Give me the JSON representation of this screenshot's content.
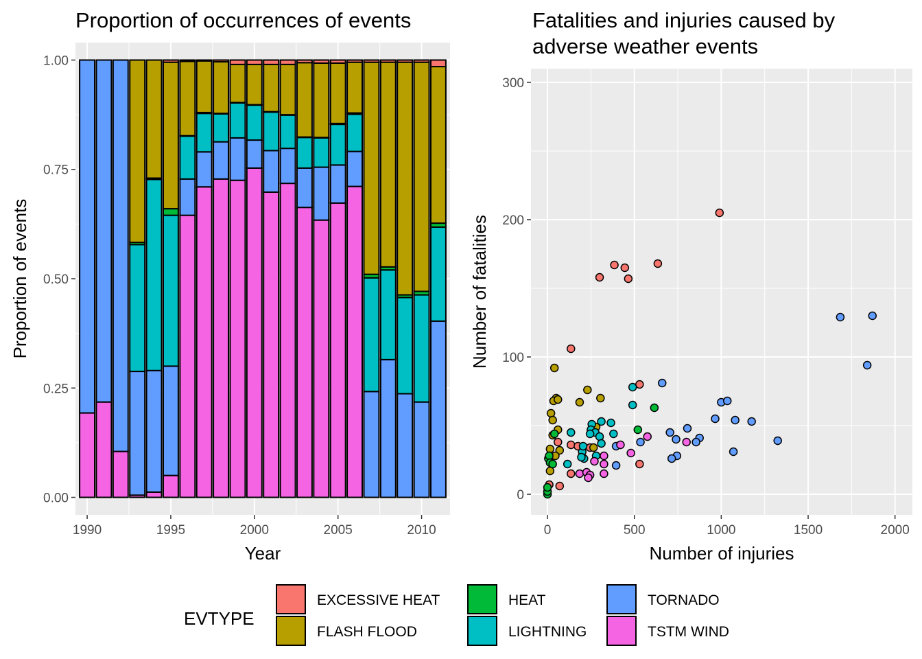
{
  "colors": {
    "EXCESSIVE HEAT": "#f8766d",
    "FLASH FLOOD": "#b79f00",
    "HEAT": "#00ba38",
    "LIGHTNING": "#00bfc4",
    "TORNADO": "#619cff",
    "TSTM WIND": "#f564e3",
    "panel": "#ebebeb",
    "grid": "#ffffff"
  },
  "legend": {
    "title": "EVTYPE",
    "entries": [
      "EXCESSIVE HEAT",
      "FLASH FLOOD",
      "HEAT",
      "LIGHTNING",
      "TORNADO",
      "TSTM WIND"
    ]
  },
  "chart_data": [
    {
      "type": "bar",
      "stacked": true,
      "title": "Proportion of occurrences of events",
      "xlabel": "Year",
      "ylabel": "Proportion of events",
      "xlim": [
        1989.3,
        2011.7
      ],
      "ylim": [
        -0.04,
        1.04
      ],
      "xticks": [
        1990,
        1995,
        2000,
        2005,
        2010
      ],
      "yticks": [
        0,
        0.25,
        0.5,
        0.75,
        1
      ],
      "ytick_labels": [
        "0.00",
        "0.25",
        "0.50",
        "0.75",
        "1.00"
      ],
      "stack_order_bottom_to_top": [
        "TSTM WIND",
        "TORNADO",
        "LIGHTNING",
        "HEAT",
        "FLASH FLOOD",
        "EXCESSIVE HEAT"
      ],
      "categories": [
        1990,
        1991,
        1992,
        1993,
        1994,
        1995,
        1996,
        1997,
        1998,
        1999,
        2000,
        2001,
        2002,
        2003,
        2004,
        2005,
        2006,
        2007,
        2008,
        2009,
        2010,
        2011
      ],
      "series": [
        {
          "name": "TSTM WIND",
          "values": [
            0.193,
            0.218,
            0.105,
            0.005,
            0.012,
            0.05,
            0.645,
            0.71,
            0.728,
            0.725,
            0.753,
            0.698,
            0.718,
            0.663,
            0.634,
            0.673,
            0.711,
            0,
            0,
            0,
            0,
            0
          ]
        },
        {
          "name": "TORNADO",
          "values": [
            0.807,
            0.782,
            0.895,
            0.283,
            0.278,
            0.25,
            0.083,
            0.08,
            0.085,
            0.097,
            0.064,
            0.095,
            0.08,
            0.09,
            0.121,
            0.087,
            0.08,
            0.242,
            0.315,
            0.237,
            0.218,
            0.403
          ]
        },
        {
          "name": "LIGHTNING",
          "values": [
            0,
            0,
            0,
            0.29,
            0.437,
            0.345,
            0.098,
            0.088,
            0.064,
            0.08,
            0.08,
            0.088,
            0.076,
            0.07,
            0.067,
            0.093,
            0.085,
            0.26,
            0.205,
            0.22,
            0.245,
            0.215
          ]
        },
        {
          "name": "HEAT",
          "values": [
            0,
            0,
            0,
            0.005,
            0.003,
            0.015,
            0.001,
            0.002,
            0.001,
            0.001,
            0.001,
            0.001,
            0.001,
            0.001,
            0.001,
            0.002,
            0.003,
            0.008,
            0.007,
            0.006,
            0.008,
            0.009
          ]
        },
        {
          "name": "FLASH FLOOD",
          "values": [
            0,
            0,
            0,
            0.417,
            0.27,
            0.335,
            0.17,
            0.118,
            0.118,
            0.087,
            0.092,
            0.108,
            0.115,
            0.17,
            0.17,
            0.138,
            0.116,
            0.485,
            0.468,
            0.532,
            0.524,
            0.358
          ]
        },
        {
          "name": "EXCESSIVE HEAT",
          "values": [
            0,
            0,
            0,
            0,
            0,
            0.005,
            0.003,
            0.002,
            0.004,
            0.01,
            0.01,
            0.01,
            0.01,
            0.006,
            0.007,
            0.007,
            0.005,
            0.005,
            0.005,
            0.005,
            0.005,
            0.015
          ]
        }
      ]
    },
    {
      "type": "scatter",
      "title": "Fatalities and injuries caused by\n adverse weather events",
      "xlabel": "Number of injuries",
      "ylabel": "Number of fatalities",
      "xlim": [
        -95,
        2100
      ],
      "ylim": [
        -15,
        310
      ],
      "xticks": [
        0,
        500,
        1000,
        1500,
        2000
      ],
      "yticks": [
        0,
        100,
        200,
        300
      ],
      "series": [
        {
          "name": "EXCESSIVE HEAT",
          "points": [
            [
              990,
              205
            ],
            [
              300,
              158
            ],
            [
              385,
              167
            ],
            [
              445,
              165
            ],
            [
              465,
              157
            ],
            [
              635,
              168
            ],
            [
              135,
              106
            ],
            [
              530,
              80
            ],
            [
              60,
              38
            ],
            [
              135,
              36
            ],
            [
              175,
              35
            ],
            [
              245,
              34
            ],
            [
              530,
              22
            ],
            [
              135,
              15
            ],
            [
              10,
              7
            ],
            [
              70,
              6
            ]
          ]
        },
        {
          "name": "FLASH FLOOD",
          "points": [
            [
              40,
              92
            ],
            [
              230,
              76
            ],
            [
              305,
              70
            ],
            [
              185,
              67
            ],
            [
              50,
              70
            ],
            [
              35,
              68
            ],
            [
              60,
              69
            ],
            [
              20,
              59
            ],
            [
              30,
              54
            ],
            [
              60,
              47
            ],
            [
              280,
              49
            ],
            [
              30,
              43
            ],
            [
              15,
              33
            ],
            [
              70,
              32
            ],
            [
              15,
              27
            ],
            [
              15,
              17
            ],
            [
              265,
              34
            ],
            [
              45,
              28
            ]
          ]
        },
        {
          "name": "HEAT",
          "points": [
            [
              0,
              0
            ],
            [
              0,
              2
            ],
            [
              0,
              5
            ],
            [
              5,
              26
            ],
            [
              10,
              28
            ],
            [
              15,
              23
            ],
            [
              40,
              44
            ],
            [
              615,
              63
            ],
            [
              520,
              47
            ],
            [
              30,
              22
            ]
          ]
        },
        {
          "name": "LIGHTNING",
          "points": [
            [
              490,
              78
            ],
            [
              490,
              65
            ],
            [
              310,
              53
            ],
            [
              365,
              52
            ],
            [
              255,
              51
            ],
            [
              250,
              47
            ],
            [
              275,
              45
            ],
            [
              300,
              42
            ],
            [
              380,
              44
            ],
            [
              245,
              44
            ],
            [
              135,
              45
            ],
            [
              200,
              31
            ],
            [
              205,
              35
            ],
            [
              310,
              37
            ],
            [
              115,
              22
            ],
            [
              210,
              26
            ],
            [
              195,
              27
            ],
            [
              280,
              28
            ]
          ]
        },
        {
          "name": "TORNADO",
          "points": [
            [
              1685,
              129
            ],
            [
              1870,
              130
            ],
            [
              1840,
              94
            ],
            [
              660,
              81
            ],
            [
              1000,
              67
            ],
            [
              1035,
              68
            ],
            [
              965,
              55
            ],
            [
              1080,
              54
            ],
            [
              1175,
              53
            ],
            [
              805,
              48
            ],
            [
              705,
              45
            ],
            [
              740,
              40
            ],
            [
              875,
              41
            ],
            [
              855,
              38
            ],
            [
              535,
              38
            ],
            [
              395,
              35
            ],
            [
              1325,
              39
            ],
            [
              1070,
              31
            ],
            [
              745,
              28
            ],
            [
              715,
              26
            ],
            [
              395,
              21
            ]
          ]
        },
        {
          "name": "TSTM WIND",
          "points": [
            [
              575,
              42
            ],
            [
              800,
              38
            ],
            [
              420,
              36
            ],
            [
              480,
              30
            ],
            [
              325,
              28
            ],
            [
              270,
              24
            ],
            [
              325,
              22
            ],
            [
              185,
              15
            ],
            [
              225,
              16
            ],
            [
              245,
              14
            ],
            [
              325,
              15
            ],
            [
              235,
              12
            ]
          ]
        }
      ]
    }
  ]
}
